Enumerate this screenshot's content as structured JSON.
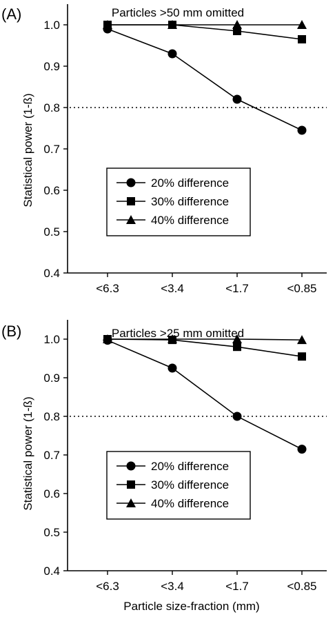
{
  "figure": {
    "xlabel": "Particle size-fraction (mm)"
  },
  "chart_data": [
    {
      "type": "line",
      "panel_label": "(A)",
      "annotation": "Particles >50 mm omitted",
      "ylabel": "Statistical power (1-ß)",
      "categories": [
        "<6.3",
        "<3.4",
        "<1.7",
        "<0.85"
      ],
      "ylim": [
        0.4,
        1.05
      ],
      "yticks": [
        "0.4",
        "0.5",
        "0.6",
        "0.7",
        "0.8",
        "0.9",
        "1.0"
      ],
      "reference_line": 0.8,
      "series": [
        {
          "name": "20% difference",
          "marker": "circle",
          "values": [
            0.99,
            0.93,
            0.82,
            0.745
          ]
        },
        {
          "name": "30% difference",
          "marker": "square",
          "values": [
            1.0,
            1.0,
            0.985,
            0.965
          ]
        },
        {
          "name": "40% difference",
          "marker": "triangle",
          "values": [
            1.0,
            1.0,
            1.0,
            1.0
          ]
        }
      ],
      "legend_position": "lower-left"
    },
    {
      "type": "line",
      "panel_label": "(B)",
      "annotation": "Particles >25 mm omitted",
      "ylabel": "Statistical power (1-ß)",
      "categories": [
        "<6.3",
        "<3.4",
        "<1.7",
        "<0.85"
      ],
      "ylim": [
        0.4,
        1.05
      ],
      "yticks": [
        "0.4",
        "0.5",
        "0.6",
        "0.7",
        "0.8",
        "0.9",
        "1.0"
      ],
      "reference_line": 0.8,
      "series": [
        {
          "name": "20% difference",
          "marker": "circle",
          "values": [
            0.997,
            0.925,
            0.8,
            0.715
          ]
        },
        {
          "name": "30% difference",
          "marker": "square",
          "values": [
            1.0,
            0.998,
            0.98,
            0.955
          ]
        },
        {
          "name": "40% difference",
          "marker": "triangle",
          "values": [
            1.0,
            1.0,
            1.0,
            0.998
          ]
        }
      ],
      "legend_position": "lower-left"
    }
  ]
}
